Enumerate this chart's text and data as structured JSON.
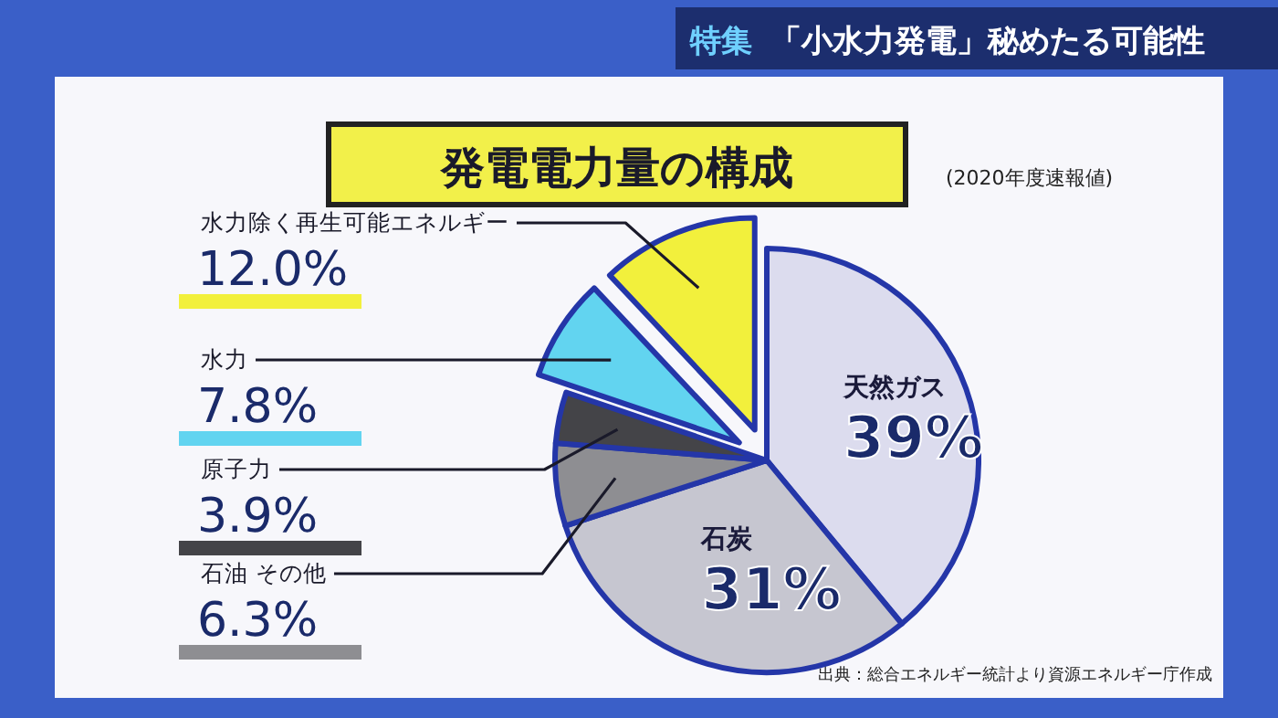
{
  "chart_data": {
    "type": "pie",
    "title": "発電電力量の構成",
    "subtitle": "(2020年度速報値)",
    "annotations": [
      "特集",
      "「小水力発電」秘めたる可能性",
      "出典：総合エネルギー統計より資源エネルギー庁作成"
    ],
    "categories": [
      "天然ガス",
      "石炭",
      "石油 その他",
      "原子力",
      "水力",
      "水力除く再生可能エネルギー"
    ],
    "values": [
      39,
      31,
      6.3,
      3.9,
      7.8,
      12.0
    ],
    "value_labels": [
      "39%",
      "31%",
      "6.3%",
      "3.9%",
      "7.8%",
      "12.0%"
    ],
    "colors": [
      "#dcdcee",
      "#c6c6d0",
      "#8e8e92",
      "#444448",
      "#62d4f0",
      "#f2f03c"
    ]
  }
}
